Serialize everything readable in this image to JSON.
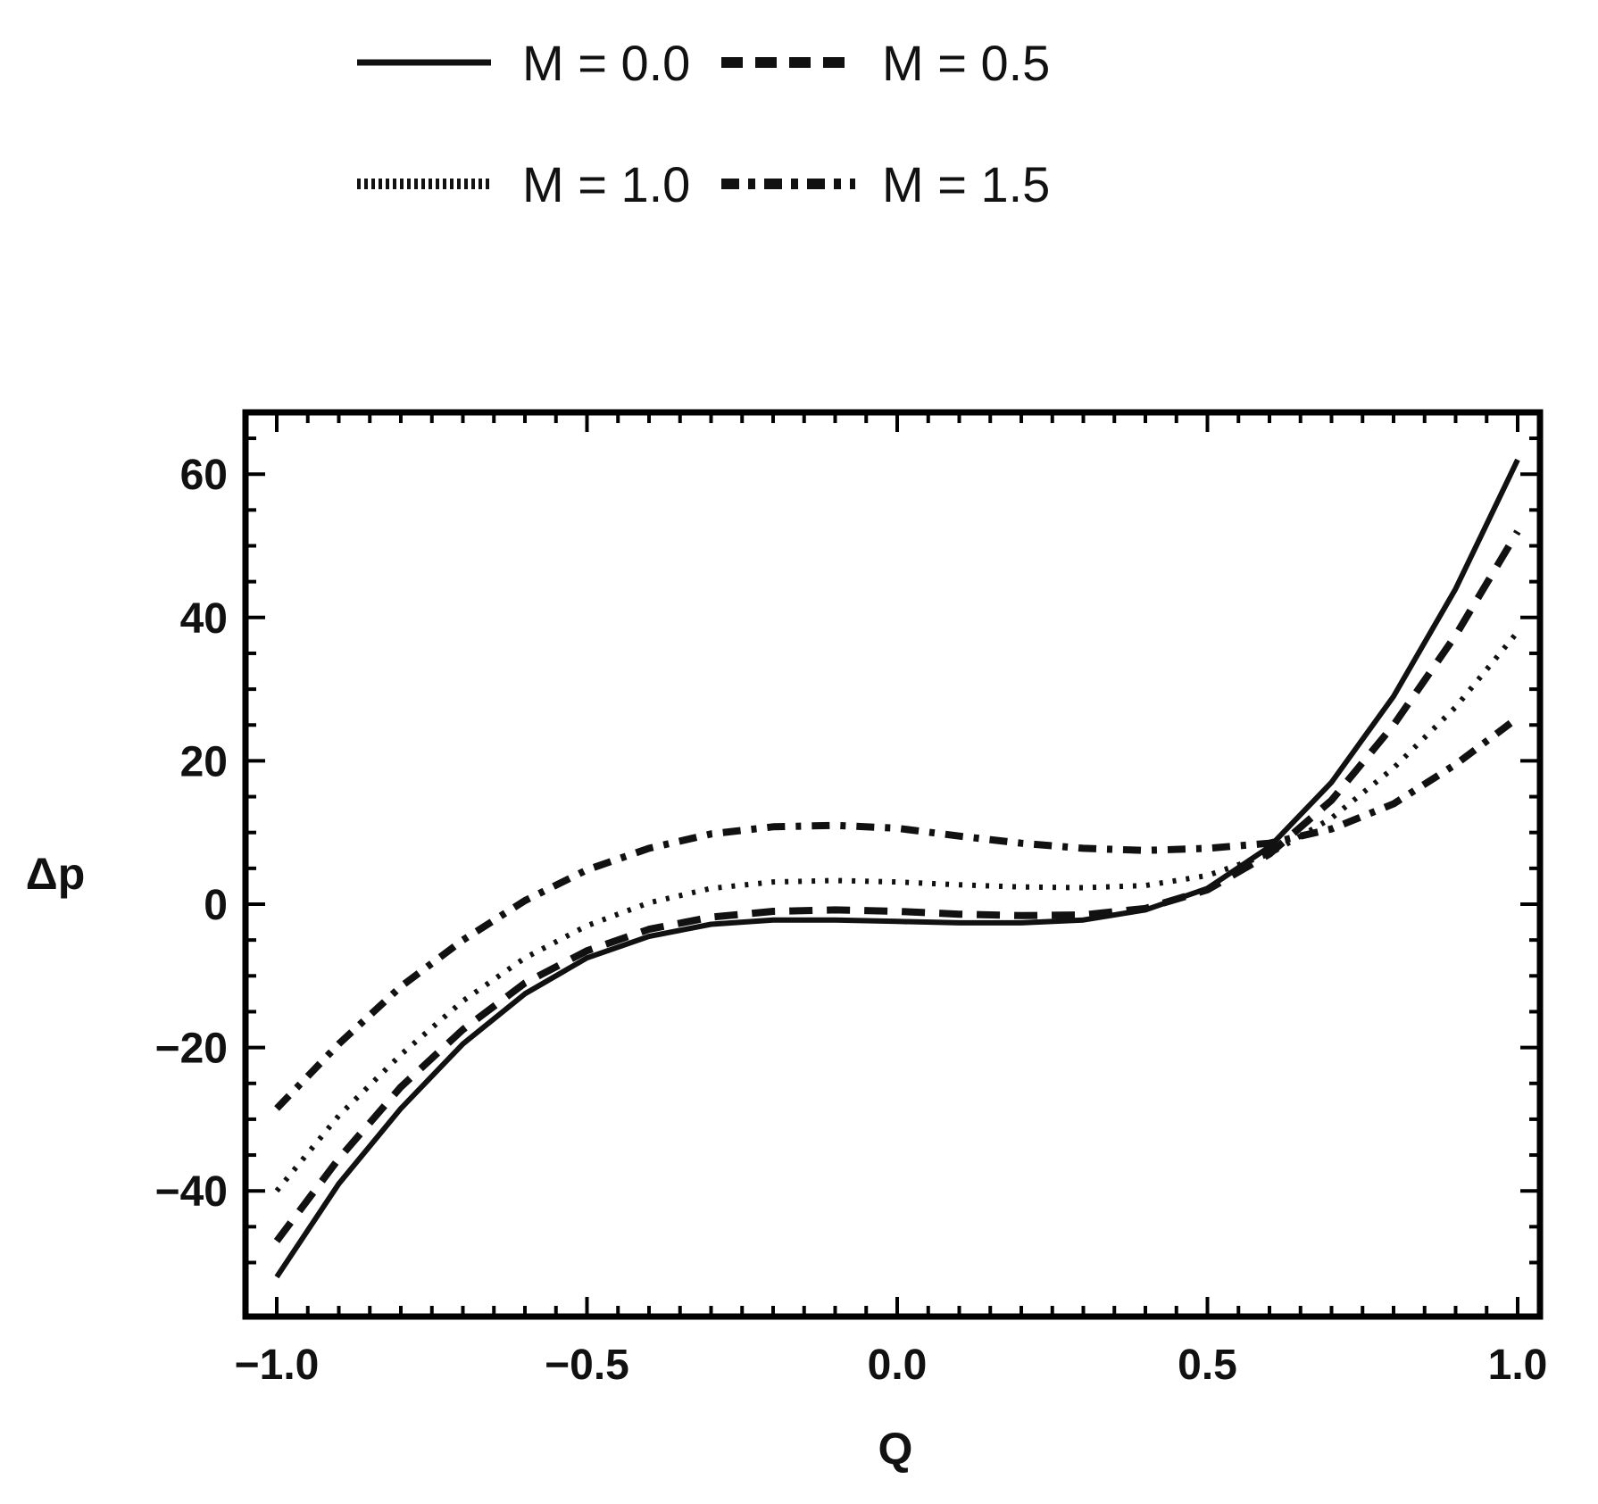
{
  "chart_data": {
    "type": "line",
    "xlabel": "Q",
    "ylabel": "Δp",
    "xlim": [
      -1.0,
      1.0
    ],
    "ylim": [
      -57,
      68
    ],
    "xticks": [
      -1.0,
      -0.5,
      0.0,
      0.5,
      1.0
    ],
    "xtick_labels": [
      "-1.0",
      "-0.5",
      "0.0",
      "0.5",
      "1.0"
    ],
    "yticks": [
      -40,
      -20,
      0,
      20,
      40,
      60
    ],
    "ytick_labels": [
      "-40",
      "-20",
      "0",
      "20",
      "40",
      "60"
    ],
    "grid": false,
    "legend_position": "top-center",
    "x": [
      -1.0,
      -0.9,
      -0.8,
      -0.7,
      -0.6,
      -0.5,
      -0.4,
      -0.3,
      -0.2,
      -0.1,
      0.0,
      0.1,
      0.2,
      0.3,
      0.4,
      0.5,
      0.6,
      0.7,
      0.8,
      0.9,
      1.0
    ],
    "series": [
      {
        "name": "M = 0.0",
        "dash": "solid",
        "values": [
          -52,
          -39,
          -28.5,
          -19.5,
          -12.5,
          -7.5,
          -4.5,
          -2.8,
          -2.2,
          -2.2,
          -2.4,
          -2.6,
          -2.6,
          -2.2,
          -0.8,
          2.2,
          8,
          17,
          29,
          44,
          62
        ]
      },
      {
        "name": "M = 0.5",
        "dash": "dashed",
        "values": [
          -47,
          -35.5,
          -25.5,
          -17.5,
          -11,
          -6.5,
          -3.5,
          -1.8,
          -1,
          -0.8,
          -1,
          -1.4,
          -1.6,
          -1.5,
          -0.6,
          2,
          7,
          14.5,
          25,
          37.5,
          52
        ]
      },
      {
        "name": "M = 1.0",
        "dash": "dotted",
        "values": [
          -40,
          -29.5,
          -21,
          -13.5,
          -7.5,
          -3,
          0.2,
          2.2,
          3.1,
          3.3,
          3.1,
          2.7,
          2.4,
          2.3,
          2.6,
          4,
          7,
          12,
          19,
          27.5,
          38
        ]
      },
      {
        "name": "M = 1.5",
        "dash": "dashdot",
        "values": [
          -28.5,
          -19.5,
          -11.5,
          -5,
          0.5,
          4.8,
          7.8,
          9.8,
          10.8,
          11,
          10.6,
          9.5,
          8.5,
          7.8,
          7.5,
          7.8,
          8.5,
          10.5,
          14,
          19.5,
          26
        ]
      }
    ]
  }
}
